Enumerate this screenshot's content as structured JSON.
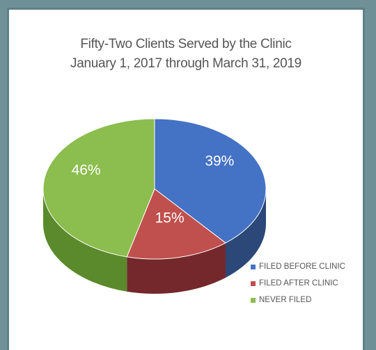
{
  "chart_data": {
    "type": "pie",
    "title": "Fifty-Two Clients Served by the Clinic",
    "subtitle": "January 1, 2017 through March 31, 2019",
    "slices": [
      {
        "label": "FILED BEFORE CLINIC",
        "value": 39,
        "display": "39%",
        "color": "#4472c4",
        "side_color": "#2b4878"
      },
      {
        "label": "FILED AFTER CLINIC",
        "value": 15,
        "display": "15%",
        "color": "#c0504d",
        "side_color": "#74282b"
      },
      {
        "label": "NEVER FILED",
        "value": 46,
        "display": "46%",
        "color": "#8cbd4f",
        "side_color": "#5a8a2c"
      }
    ],
    "legend_position": "bottom-right",
    "style": "3d"
  }
}
